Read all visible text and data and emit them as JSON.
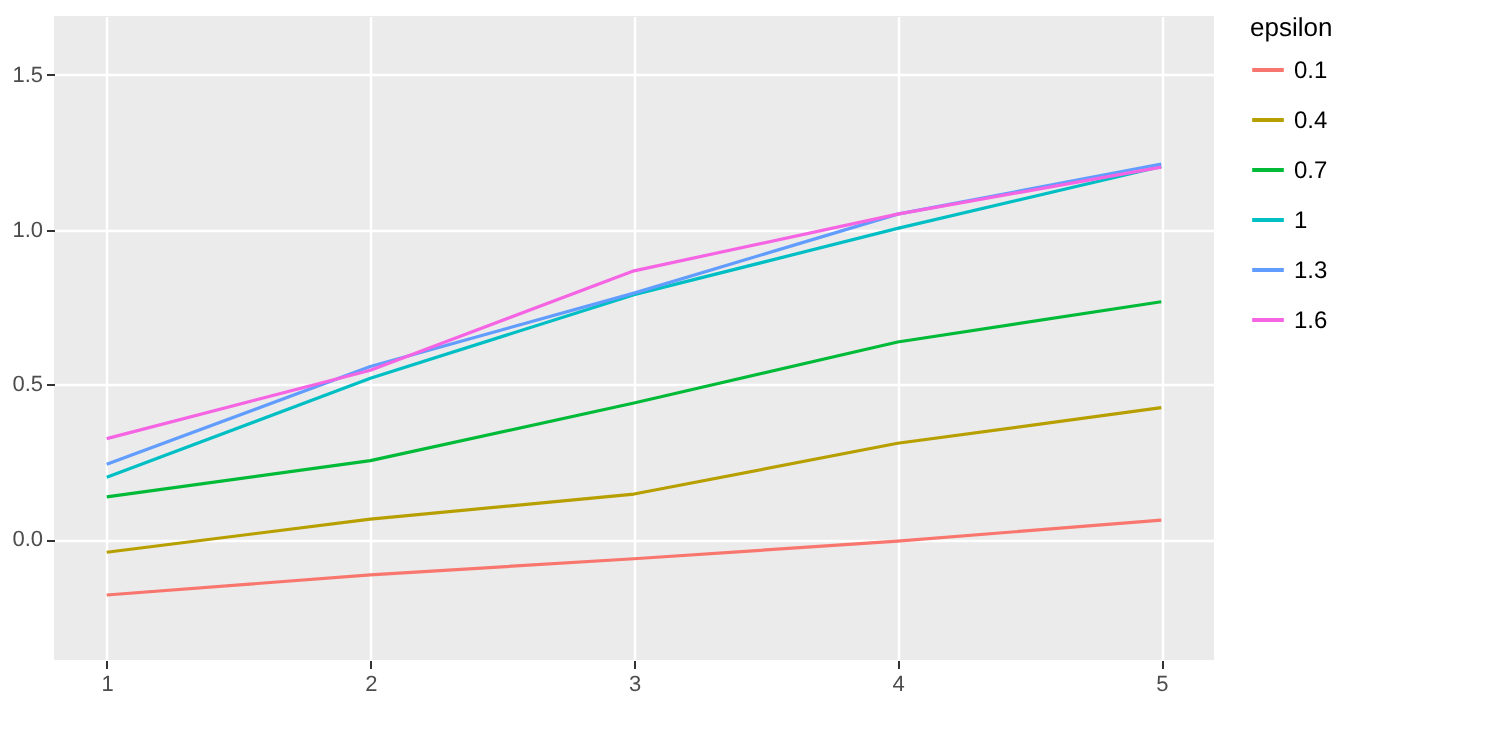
{
  "chart_data": {
    "type": "line",
    "legend_title": "epsilon",
    "x": [
      1,
      2,
      3,
      4,
      5
    ],
    "series": [
      {
        "name": "0.1",
        "color": "#f8766d",
        "values": [
          -0.18,
          -0.115,
          -0.063,
          -0.006,
          0.062
        ]
      },
      {
        "name": "0.4",
        "color": "#b79f00",
        "values": [
          -0.042,
          0.065,
          0.146,
          0.31,
          0.425
        ]
      },
      {
        "name": "0.7",
        "color": "#00ba38",
        "values": [
          0.137,
          0.254,
          0.44,
          0.637,
          0.767
        ]
      },
      {
        "name": "1",
        "color": "#00bfc4",
        "values": [
          0.2,
          0.52,
          0.79,
          1.004,
          1.204
        ]
      },
      {
        "name": "1.3",
        "color": "#619cff",
        "values": [
          0.242,
          0.558,
          0.795,
          1.05,
          1.212
        ]
      },
      {
        "name": "1.6",
        "color": "#f564e3",
        "values": [
          0.325,
          0.546,
          0.867,
          1.05,
          1.202
        ]
      }
    ],
    "xlim": [
      0.8,
      5.2
    ],
    "xticks": [
      1,
      2,
      3,
      4,
      5
    ],
    "ylim": [
      -0.39,
      1.69
    ],
    "yticks": [
      {
        "value": 0,
        "label": "0.0"
      },
      0.5,
      {
        "value": 1,
        "label": "1.0"
      },
      1.5
    ],
    "grid": true,
    "legend": "right",
    "marker": "none",
    "line_style": "solid"
  }
}
